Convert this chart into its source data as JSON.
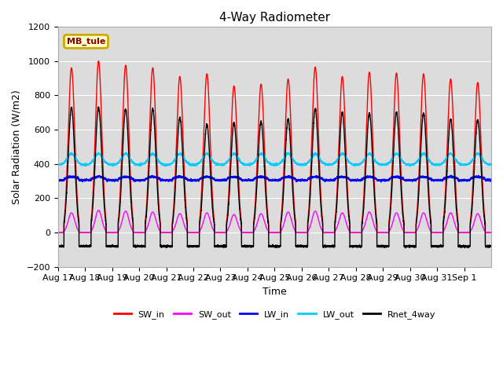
{
  "title": "4-Way Radiometer",
  "xlabel": "Time",
  "ylabel": "Solar Radiation (W/m2)",
  "ylim": [
    -200,
    1200
  ],
  "yticks": [
    -200,
    0,
    200,
    400,
    600,
    800,
    1000,
    1200
  ],
  "date_labels": [
    "Aug 17",
    "Aug 18",
    "Aug 19",
    "Aug 20",
    "Aug 21",
    "Aug 22",
    "Aug 23",
    "Aug 24",
    "Aug 25",
    "Aug 26",
    "Aug 27",
    "Aug 28",
    "Aug 29",
    "Aug 30",
    "Aug 31",
    "Sep 1"
  ],
  "station_label": "MB_tule",
  "legend_entries": [
    "SW_in",
    "SW_out",
    "LW_in",
    "LW_out",
    "Rnet_4way"
  ],
  "colors": {
    "SW_in": "#ff0000",
    "SW_out": "#ff00ff",
    "LW_in": "#0000ff",
    "LW_out": "#00ccff",
    "Rnet_4way": "#000000"
  },
  "background_color_light": "#dcdcdc",
  "background_color_dark": "#c8c8c8",
  "figure_background": "#ffffff",
  "SW_in_peaks": [
    960,
    1000,
    975,
    960,
    910,
    925,
    855,
    865,
    895,
    965,
    910,
    935,
    930,
    925,
    895,
    875
  ],
  "SW_out_peaks": [
    115,
    130,
    125,
    120,
    110,
    115,
    105,
    110,
    120,
    125,
    115,
    120,
    115,
    115,
    115,
    110
  ],
  "LW_in_base": 310,
  "LW_out_base": 395,
  "LW_out_day_peak": 460,
  "Rnet_peaks": [
    730,
    730,
    720,
    720,
    670,
    630,
    640,
    645,
    660,
    720,
    700,
    695,
    700,
    695,
    660,
    655
  ],
  "Rnet_night": -80,
  "n_days": 16,
  "pts_per_day": 288
}
